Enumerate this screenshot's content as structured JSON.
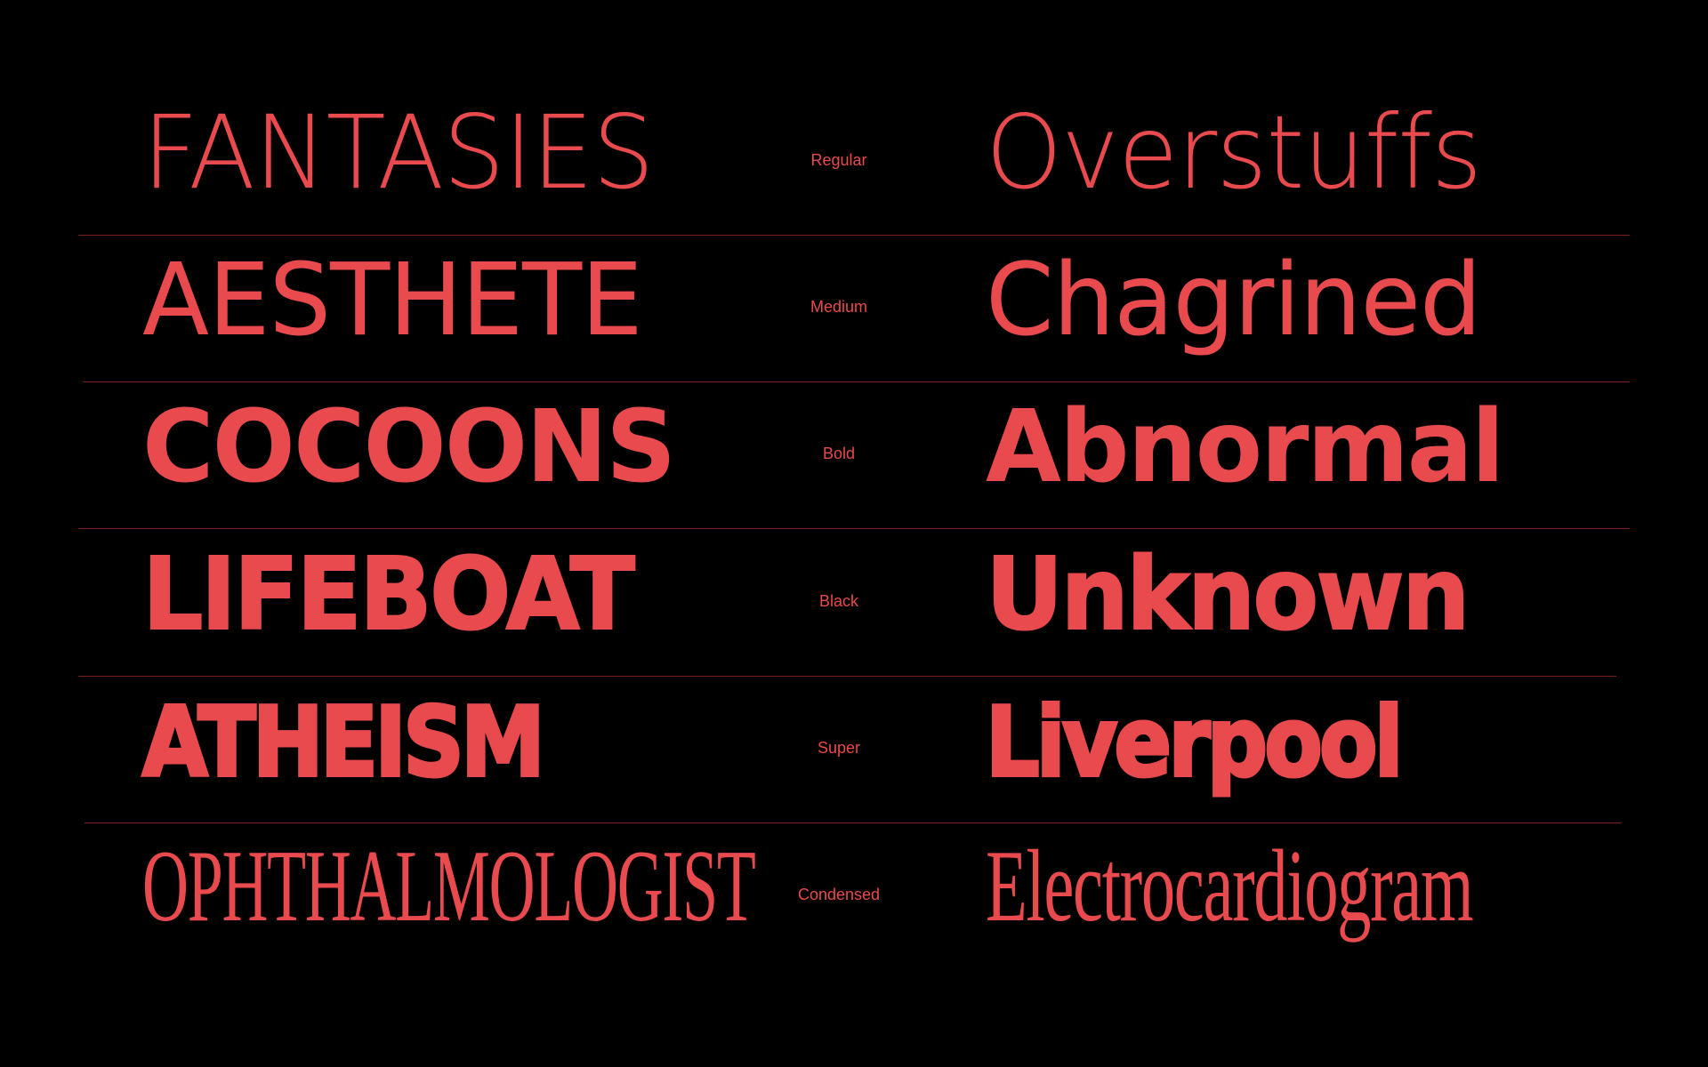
{
  "colors": {
    "background": "#000000",
    "accent": "#e84a4d",
    "rule": "#7a1f22"
  },
  "rows": [
    {
      "left": "FANTASIES",
      "weight": "Regular",
      "right": "Overstuffs"
    },
    {
      "left": "AESTHETE",
      "weight": "Medium",
      "right": "Chagrined"
    },
    {
      "left": "COCOONS",
      "weight": "Bold",
      "right": "Abnormal"
    },
    {
      "left": "LIFEBOAT",
      "weight": "Black",
      "right": "Unknown"
    },
    {
      "left": "ATHEISM",
      "weight": "Super",
      "right": "Liverpool"
    },
    {
      "left": "OPHTHALMOLOGIST",
      "weight": "Condensed",
      "right": "Electrocardiogram"
    }
  ]
}
